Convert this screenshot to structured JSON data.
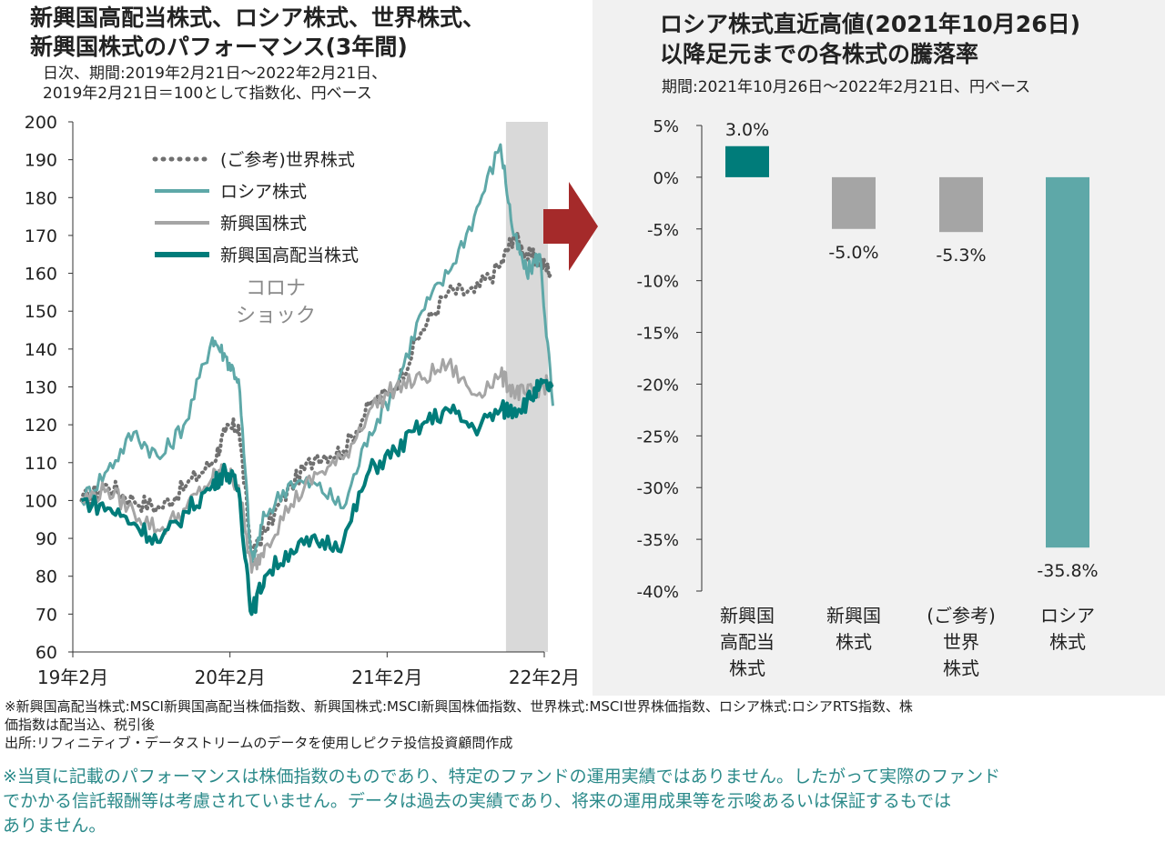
{
  "left_chart": {
    "title_line1": "新興国高配当株式、ロシア株式、世界株式、",
    "title_line2": "新興国株式のパフォーマンス(3年間)",
    "subtitle_line1": "日次、期間:2019年2月21日～2022年2月21日、",
    "subtitle_line2": "2019年2月21日＝100として指数化、円ベース",
    "annotation_line1": "コロナ",
    "annotation_line2": "ショック"
  },
  "right_chart": {
    "title_line1": "ロシア株式直近高値(2021年10月26日)",
    "title_line2": "以降足元までの各株式の騰落率",
    "subtitle": "期間:2021年10月26日～2022年2月21日、円ベース"
  },
  "arrow_color": "#a52a2a",
  "notes": {
    "line1": "※新興国高配当株式:MSCI新興国高配当株価指数、新興国株式:MSCI新興国株価指数、世界株式:MSCI世界株価指数、ロシア株式:ロシアRTS指数、株",
    "line2": "価指数は配当込、税引後",
    "line3": "出所:リフィニティブ・データストリームのデータを使用しピクテ投信投資顧問作成"
  },
  "disclaimer": {
    "line1": "※当頁に記載のパフォーマンスは株価指数のものであり、特定のファンドの運用実績ではありません。したがって実際のファンド",
    "line2": "でかかる信託報酬等は考慮されていません。データは過去の実績であり、将来の運用成果等を示唆あるいは保証するもでは",
    "line3": "ありません。"
  },
  "chart_data": [
    {
      "type": "line",
      "ylim": [
        60,
        200
      ],
      "yticks": [
        60,
        70,
        80,
        90,
        100,
        110,
        120,
        130,
        140,
        150,
        160,
        170,
        180,
        190,
        200
      ],
      "xticks": [
        "19年2月",
        "20年2月",
        "21年2月",
        "22年2月"
      ],
      "shaded_period": [
        "2021-10-26",
        "2022-02-21"
      ],
      "legend_position": "top-left",
      "x": [
        "2019-02",
        "2019-04",
        "2019-06",
        "2019-08",
        "2019-10",
        "2019-12",
        "2020-01",
        "2020-02",
        "2020-03",
        "2020-04",
        "2020-06",
        "2020-08",
        "2020-10",
        "2020-12",
        "2021-02",
        "2021-04",
        "2021-06",
        "2021-08",
        "2021-10",
        "2021-11",
        "2021-12",
        "2022-01",
        "2022-02"
      ],
      "series": [
        {
          "name": "(ご参考)世界株式",
          "color": "#707070",
          "style": "dotted",
          "values": [
            100,
            104,
            100,
            98,
            104,
            110,
            118,
            120,
            85,
            92,
            104,
            112,
            113,
            125,
            130,
            145,
            155,
            155,
            162,
            170,
            165,
            163,
            160
          ]
        },
        {
          "name": "ロシア株式",
          "color": "#5ea8a8",
          "style": "solid",
          "values": [
            100,
            108,
            118,
            111,
            121,
            143,
            138,
            132,
            83,
            96,
            105,
            104,
            98,
            118,
            130,
            150,
            160,
            175,
            194,
            170,
            160,
            165,
            125
          ]
        },
        {
          "name": "新興国株式",
          "color": "#a5a5a5",
          "style": "solid",
          "values": [
            100,
            103,
            97,
            92,
            98,
            106,
            108,
            104,
            81,
            88,
            99,
            107,
            111,
            124,
            130,
            132,
            136,
            128,
            133,
            129,
            128,
            130,
            131
          ]
        },
        {
          "name": "新興国高配当株式",
          "color": "#007c7a",
          "style": "solid",
          "values": [
            100,
            98,
            94,
            89,
            97,
            104,
            108,
            103,
            70,
            80,
            87,
            89,
            89,
            108,
            113,
            120,
            124,
            119,
            124,
            124,
            126,
            130,
            130
          ]
        }
      ]
    },
    {
      "type": "bar",
      "categories": [
        "新興国高配当株式",
        "新興国株式",
        "(ご参考)世界株式",
        "ロシア株式"
      ],
      "category_lines": [
        [
          "新興国",
          "高配当",
          "株式"
        ],
        [
          "新興国",
          "株式"
        ],
        [
          "(ご参考)",
          "世界",
          "株式"
        ],
        [
          "ロシア",
          "株式"
        ]
      ],
      "values": [
        3.0,
        -5.0,
        -5.3,
        -35.8
      ],
      "value_labels": [
        "3.0%",
        "-5.0%",
        "-5.3%",
        "-35.8%"
      ],
      "colors": [
        "#007c7a",
        "#a5a5a5",
        "#a5a5a5",
        "#5ea8a8"
      ],
      "ylim": [
        -40,
        5
      ],
      "yticks": [
        5,
        0,
        -5,
        -10,
        -15,
        -20,
        -25,
        -30,
        -35,
        -40
      ],
      "ytick_labels": [
        "5%",
        "0%",
        "-5%",
        "-10%",
        "-15%",
        "-20%",
        "-25%",
        "-30%",
        "-35%",
        "-40%"
      ]
    }
  ]
}
